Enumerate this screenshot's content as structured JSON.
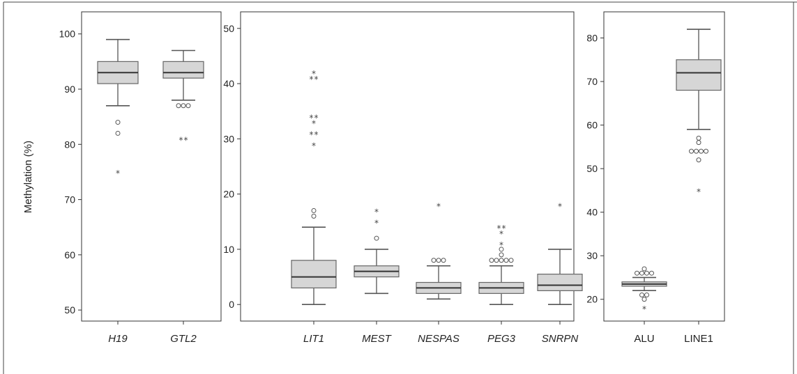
{
  "chart_data": [
    {
      "type": "box",
      "ylabel": "Methylation (%)",
      "ylim": [
        48,
        104
      ],
      "yticks": [
        50,
        60,
        70,
        80,
        90,
        100
      ],
      "categories": [
        {
          "label": "H19",
          "italic": true,
          "min": 87,
          "q1": 91,
          "median": 93,
          "q3": 95,
          "max": 99,
          "outliers": [
            {
              "value": 84,
              "marker": "circle"
            },
            {
              "value": 82,
              "marker": "circle"
            },
            {
              "value": 75,
              "marker": "star"
            }
          ]
        },
        {
          "label": "GTL2",
          "italic": true,
          "min": 88,
          "q1": 92,
          "median": 93,
          "q3": 95,
          "max": 97,
          "outliers": [
            {
              "value": 87,
              "marker": "circle",
              "count": 3
            },
            {
              "value": 81,
              "marker": "star",
              "count": 2
            }
          ]
        }
      ]
    },
    {
      "type": "box",
      "ylabel": "",
      "ylim": [
        -3,
        53
      ],
      "yticks": [
        0,
        10,
        20,
        30,
        40,
        50
      ],
      "categories": [
        {
          "label": "LIT1",
          "italic": true,
          "min": 0,
          "q1": 3,
          "median": 5,
          "q3": 8,
          "max": 14,
          "outliers": [
            {
              "value": 16,
              "marker": "circle"
            },
            {
              "value": 17,
              "marker": "circle"
            },
            {
              "value": 29,
              "marker": "star"
            },
            {
              "value": 31,
              "marker": "star",
              "count": 2
            },
            {
              "value": 33,
              "marker": "star"
            },
            {
              "value": 34,
              "marker": "star",
              "count": 2
            },
            {
              "value": 41,
              "marker": "star",
              "count": 2
            },
            {
              "value": 42,
              "marker": "star"
            }
          ]
        },
        {
          "label": "MEST",
          "italic": true,
          "min": 2,
          "q1": 5,
          "median": 6,
          "q3": 7,
          "max": 10,
          "outliers": [
            {
              "value": 12,
              "marker": "circle"
            },
            {
              "value": 15,
              "marker": "star"
            },
            {
              "value": 17,
              "marker": "star"
            }
          ]
        },
        {
          "label": "NESPAS",
          "italic": true,
          "min": 1,
          "q1": 2,
          "median": 3,
          "q3": 4,
          "max": 7,
          "outliers": [
            {
              "value": 8,
              "marker": "circle",
              "count": 3
            },
            {
              "value": 18,
              "marker": "star"
            }
          ]
        },
        {
          "label": "PEG3",
          "italic": true,
          "min": 0,
          "q1": 2,
          "median": 3,
          "q3": 4,
          "max": 7,
          "outliers": [
            {
              "value": 8,
              "marker": "circle",
              "count": 5
            },
            {
              "value": 9,
              "marker": "circle"
            },
            {
              "value": 10,
              "marker": "circle"
            },
            {
              "value": 11,
              "marker": "star"
            },
            {
              "value": 13,
              "marker": "star"
            },
            {
              "value": 14,
              "marker": "star",
              "count": 2
            }
          ]
        },
        {
          "label": "SNRPN",
          "italic": true,
          "min": 0,
          "q1": 2.5,
          "median": 3.5,
          "q3": 5.5,
          "max": 10,
          "outliers": [
            {
              "value": 18,
              "marker": "star"
            }
          ]
        }
      ]
    },
    {
      "type": "box",
      "ylabel": "",
      "ylim": [
        15,
        86
      ],
      "yticks": [
        20,
        30,
        40,
        50,
        60,
        70,
        80
      ],
      "categories": [
        {
          "label": "ALU",
          "italic": false,
          "min": 22,
          "q1": 23,
          "median": 23.5,
          "q3": 24,
          "max": 25,
          "outliers": [
            {
              "value": 26,
              "marker": "circle",
              "count": 4
            },
            {
              "value": 27,
              "marker": "circle"
            },
            {
              "value": 21,
              "marker": "circle",
              "count": 2
            },
            {
              "value": 20,
              "marker": "circle"
            },
            {
              "value": 18,
              "marker": "star"
            }
          ]
        },
        {
          "label": "LINE1",
          "italic": false,
          "min": 59,
          "q1": 68,
          "median": 72,
          "q3": 75,
          "max": 82,
          "outliers": [
            {
              "value": 57,
              "marker": "circle"
            },
            {
              "value": 56,
              "marker": "circle"
            },
            {
              "value": 54,
              "marker": "circle",
              "count": 4
            },
            {
              "value": 52,
              "marker": "circle"
            },
            {
              "value": 45,
              "marker": "star"
            }
          ]
        }
      ]
    }
  ]
}
